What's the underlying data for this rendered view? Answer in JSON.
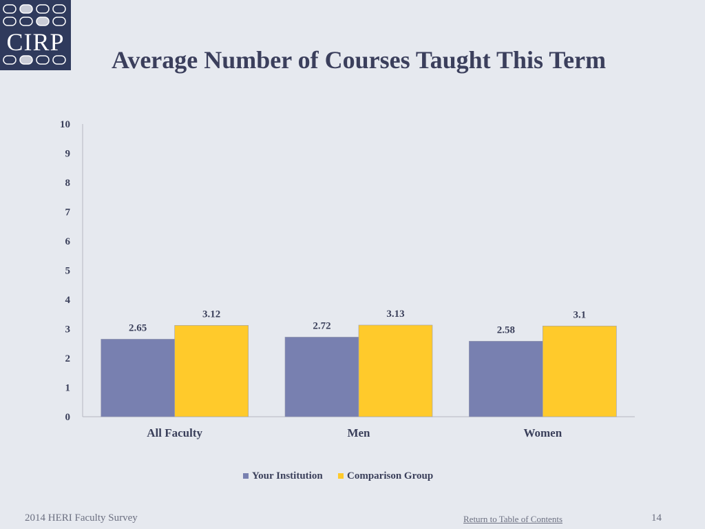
{
  "logo": {
    "text": "CIRP"
  },
  "slide": {
    "title": "Average Number of Courses Taught This Term"
  },
  "chart_data": {
    "type": "bar",
    "title": "Average Number of Courses Taught This Term",
    "categories": [
      "All Faculty",
      "Men",
      "Women"
    ],
    "series": [
      {
        "name": "Your Institution",
        "values": [
          2.65,
          2.72,
          2.58
        ],
        "color": "#7880b0"
      },
      {
        "name": "Comparison Group",
        "values": [
          3.12,
          3.13,
          3.1
        ],
        "color": "#ffca2b"
      }
    ],
    "data_labels": [
      [
        "2.65",
        "2.72",
        "2.58"
      ],
      [
        "3.12",
        "3.13",
        "3.1"
      ]
    ],
    "ylim": [
      0,
      10
    ],
    "yticks": [
      0,
      1,
      2,
      3,
      4,
      5,
      6,
      7,
      8,
      9,
      10
    ],
    "grid": false,
    "legend_position": "bottom"
  },
  "footer": {
    "survey_label": "2014 HERI Faculty Survey",
    "toc_link": "Return to Table of Contents",
    "page_number": "14"
  }
}
